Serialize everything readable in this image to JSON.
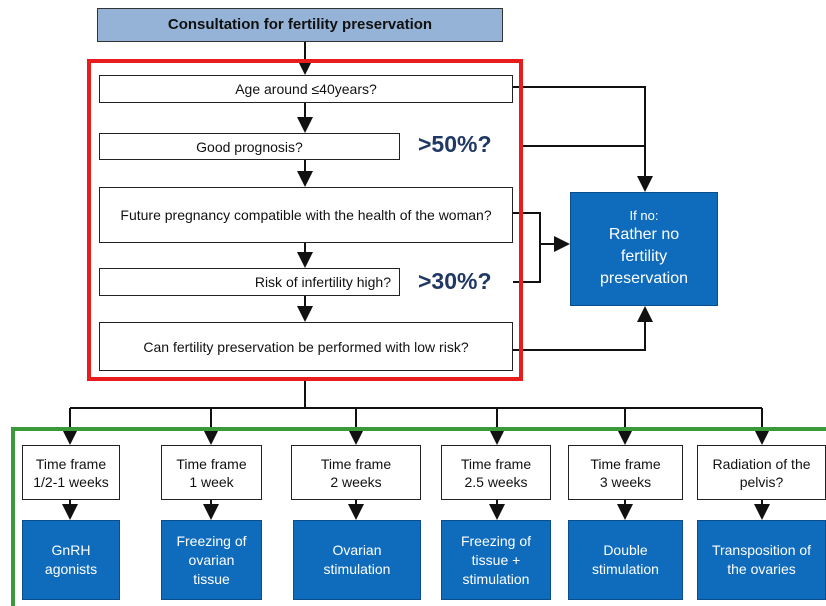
{
  "title": "Consultation for fertility preservation",
  "questions": [
    {
      "text": "Age around ≤40years?"
    },
    {
      "text": "Good prognosis?",
      "threshold": ">50%?"
    },
    {
      "text": "Future pregnancy compatible with the health of the woman?"
    },
    {
      "text": "Risk of infertility high?",
      "threshold": ">30%?"
    },
    {
      "text": "Can fertility preservation be performed with low risk?"
    }
  ],
  "outcome": {
    "condition": "If no:",
    "text": "Rather no fertility preservation"
  },
  "options": [
    {
      "criterion": "Time frame 1/2-1 weeks",
      "treatment": "GnRH agonists"
    },
    {
      "criterion": "Time frame 1 week",
      "treatment": "Freezing of ovarian tissue"
    },
    {
      "criterion": "Time frame 2 weeks",
      "treatment": "Ovarian stimulation"
    },
    {
      "criterion": "Time frame 2.5 weeks",
      "treatment": "Freezing of tissue + stimulation"
    },
    {
      "criterion": "Time frame 3 weeks",
      "treatment": "Double stimulation"
    },
    {
      "criterion": "Radiation of the pelvis?",
      "treatment": "Transposition of the ovaries"
    }
  ]
}
